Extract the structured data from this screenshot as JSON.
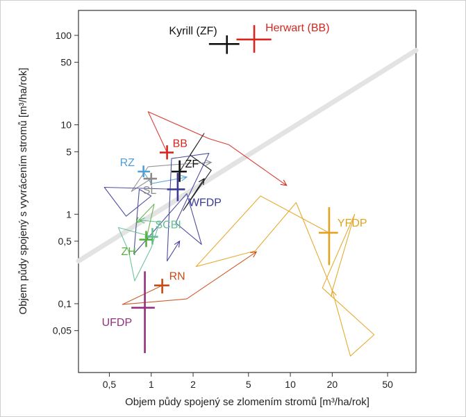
{
  "chart_data": {
    "type": "scatter",
    "xlabel": "Objem půdy spojený se zlomením stromů [m³/ha/rok]",
    "ylabel": "Objem půdy spojený s vyvrácením stromů [m³/ha/rok]",
    "x_scale": "log",
    "y_scale": "log",
    "xlim": [
      0.3,
      80
    ],
    "ylim": [
      0.017,
      190
    ],
    "xticks": [
      0.5,
      1,
      2,
      5,
      10,
      20,
      50
    ],
    "xtick_labels": [
      "0,5",
      "1",
      "2",
      "5",
      "10",
      "20",
      "50"
    ],
    "yticks": [
      0.05,
      0.1,
      0.5,
      1,
      5,
      10,
      50,
      100
    ],
    "ytick_labels": [
      "0,05",
      "0,1",
      "0,5",
      "1",
      "5",
      "10",
      "50",
      "100"
    ],
    "grid": false,
    "reference_line": {
      "color": "#e3e3e3",
      "x_start": 0.3,
      "y_start": 0.3,
      "x_end": 80,
      "y_end": 68
    },
    "sites": [
      {
        "label": "Kyrill (ZF)",
        "color": "#111111",
        "x": 3.5,
        "y": 80,
        "x_range": [
          2.6,
          4.3
        ],
        "y_range": [
          62,
          100
        ],
        "path": []
      },
      {
        "label": "Herwart (BB)",
        "color": "#d7261e",
        "x": 5.5,
        "y": 90,
        "x_range": [
          4.1,
          7.3
        ],
        "y_range": [
          64,
          130
        ],
        "path": []
      },
      {
        "label": "BB",
        "color": "#d7261e",
        "x": 1.3,
        "y": 4.9,
        "x_range": [
          1.15,
          1.45
        ],
        "y_range": [
          4.1,
          5.9
        ],
        "path": [
          [
            1.3,
            4.9
          ],
          [
            0.95,
            14
          ],
          [
            2.6,
            7
          ],
          [
            3.6,
            6
          ],
          [
            9.4,
            2.1
          ]
        ]
      },
      {
        "label": "ZF",
        "color": "#111111",
        "x": 1.6,
        "y": 3.0,
        "x_range": [
          1.4,
          1.8
        ],
        "y_range": [
          2.3,
          4.0
        ],
        "path": [
          [
            1.6,
            3.0
          ],
          [
            2.4,
            8
          ],
          [
            1.9,
            4.6
          ],
          [
            2.7,
            3.1
          ],
          [
            1.7,
            1.1
          ],
          [
            2.4,
            2.5
          ]
        ]
      },
      {
        "label": "SL",
        "color": "#8a8a8a",
        "x": 1.0,
        "y": 2.5,
        "x_range": [
          0.88,
          1.1
        ],
        "y_range": [
          2.1,
          2.9
        ],
        "path": [
          [
            1.0,
            2.5
          ],
          [
            0.72,
            1.8
          ],
          [
            0.95,
            3.4
          ],
          [
            1.5,
            3.6
          ],
          [
            2.7,
            3.8
          ]
        ]
      },
      {
        "label": "RZ",
        "color": "#4f9fd6",
        "x": 0.88,
        "y": 3.0,
        "x_range": [
          0.8,
          0.98
        ],
        "y_range": [
          2.6,
          3.5
        ],
        "path": [
          [
            0.88,
            3.0
          ],
          [
            1.0,
            2.2
          ],
          [
            1.8,
            2.6
          ]
        ]
      },
      {
        "label": "WFDP",
        "color": "#3a3a96",
        "x": 1.55,
        "y": 1.9,
        "x_range": [
          1.3,
          1.75
        ],
        "y_range": [
          1.4,
          2.9
        ],
        "path": [
          [
            1.55,
            1.9
          ],
          [
            0.46,
            2.0
          ],
          [
            0.66,
            0.95
          ],
          [
            1.0,
            1.6
          ],
          [
            0.82,
            1.9
          ],
          [
            0.75,
            0.36
          ],
          [
            1.8,
            1.7
          ],
          [
            2.3,
            0.46
          ],
          [
            1.5,
            0.8
          ],
          [
            2.6,
            4.8
          ],
          [
            1.4,
            4.2
          ],
          [
            1.3,
            0.3
          ],
          [
            1.6,
            0.5
          ]
        ]
      },
      {
        "label": "SCBI",
        "color": "#5fbf8f",
        "x": 1.02,
        "y": 0.56,
        "x_range": [
          0.9,
          1.12
        ],
        "y_range": [
          0.46,
          0.7
        ],
        "path": [
          [
            1.02,
            0.56
          ],
          [
            0.58,
            0.71
          ],
          [
            0.69,
            0.38
          ],
          [
            0.76,
            0.18
          ],
          [
            1.0,
            0.42
          ],
          [
            1.15,
            0.82
          ],
          [
            0.82,
            0.86
          ]
        ]
      },
      {
        "label": "ZH",
        "color": "#57b03e",
        "x": 0.92,
        "y": 0.52,
        "x_range": [
          0.82,
          1.02
        ],
        "y_range": [
          0.43,
          0.65
        ],
        "path": [
          [
            0.92,
            0.52
          ],
          [
            1.05,
            1.3
          ],
          [
            0.78,
            0.8
          ]
        ]
      },
      {
        "label": "RN",
        "color": "#c84a14",
        "x": 1.2,
        "y": 0.16,
        "x_range": [
          1.05,
          1.35
        ],
        "y_range": [
          0.13,
          0.19
        ],
        "path": [
          [
            1.2,
            0.16
          ],
          [
            0.62,
            0.098
          ],
          [
            1.8,
            0.113
          ],
          [
            5.7,
            0.38
          ]
        ]
      },
      {
        "label": "UFDP",
        "color": "#93307e",
        "x": 0.9,
        "y": 0.09,
        "x_range": [
          0.72,
          1.06
        ],
        "y_range": [
          0.028,
          0.23
        ],
        "path": []
      },
      {
        "label": "YFDP",
        "color": "#e3a21c",
        "x": 19,
        "y": 0.62,
        "x_range": [
          16,
          22
        ],
        "y_range": [
          0.27,
          1.2
        ],
        "path": [
          [
            19,
            0.62
          ],
          [
            6.1,
            1.6
          ],
          [
            2.1,
            0.26
          ],
          [
            5.6,
            0.39
          ],
          [
            5.6,
            0.39
          ],
          [
            11,
            1.35
          ],
          [
            20,
            0.14
          ],
          [
            29,
            1.0
          ],
          [
            17,
            0.15
          ],
          [
            40,
            0.045
          ],
          [
            27,
            0.026
          ],
          [
            20,
            0.14
          ]
        ]
      }
    ]
  }
}
